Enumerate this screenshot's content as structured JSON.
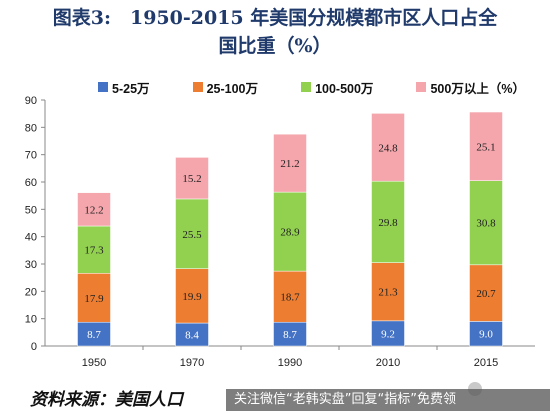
{
  "title": {
    "line1": "图表3:　1950-2015 年美国分规模都市区人口占全",
    "line2": "国比重（%）"
  },
  "source": {
    "text": "资料来源：美国人口",
    "banner": "关注微信“老韩实盘”回复“指标”免费领"
  },
  "chart_data": {
    "type": "bar",
    "stacked": true,
    "categories": [
      "1950",
      "1970",
      "1990",
      "2010",
      "2015"
    ],
    "ylim": [
      0,
      90
    ],
    "yticks": [
      0,
      10,
      20,
      30,
      40,
      50,
      60,
      70,
      80,
      90
    ],
    "legend_position": "top",
    "series": [
      {
        "name": "5-25万",
        "color": "#4472c4",
        "values": [
          8.7,
          8.4,
          8.7,
          9.2,
          9.0
        ]
      },
      {
        "name": "25-100万",
        "color": "#ed7d31",
        "values": [
          17.9,
          19.9,
          18.7,
          21.3,
          20.7
        ]
      },
      {
        "name": "100-500万",
        "color": "#92d050",
        "values": [
          17.3,
          25.5,
          28.9,
          29.8,
          30.8
        ]
      },
      {
        "name": "500万以上（%）",
        "color": "#f4a6ac",
        "values": [
          12.2,
          15.2,
          21.2,
          24.8,
          25.1
        ]
      }
    ]
  }
}
